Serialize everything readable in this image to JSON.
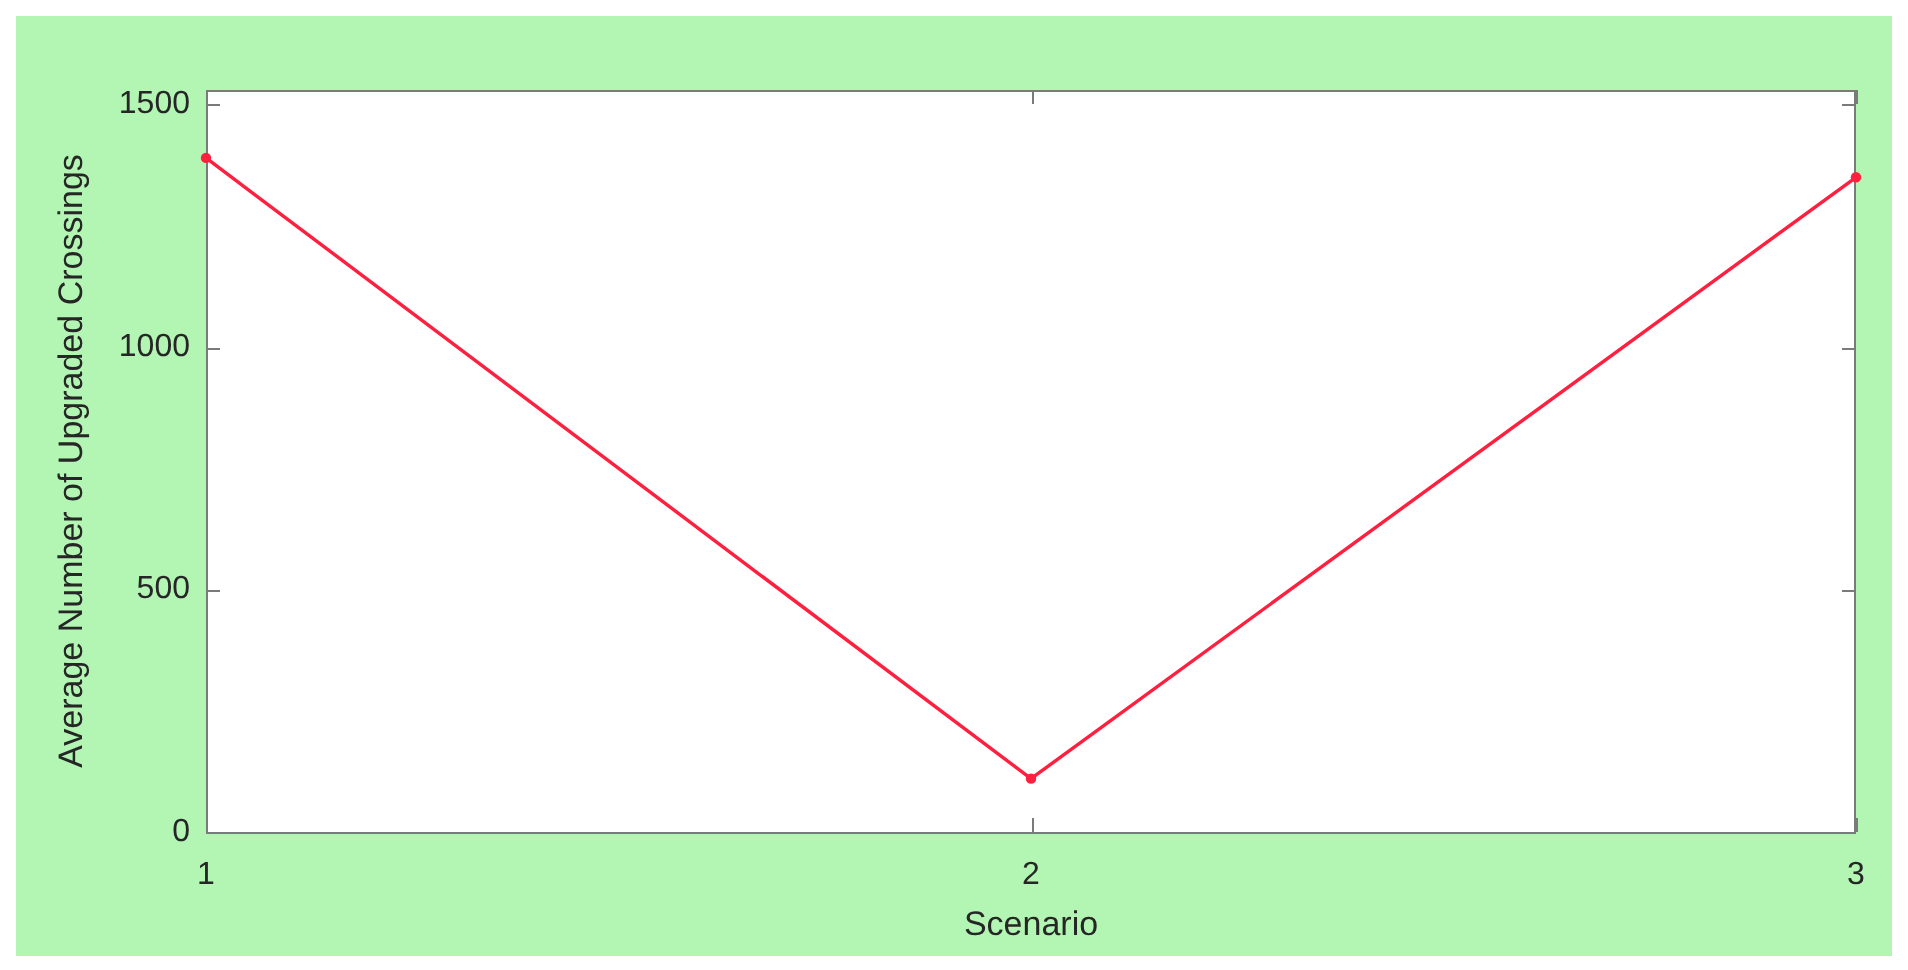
{
  "chart_data": {
    "type": "line",
    "xlabel": "Scenario",
    "ylabel": "Average Number of Upgraded Crossings",
    "x": [
      1,
      2,
      3
    ],
    "series": [
      {
        "color": "#ff1f3f",
        "values": [
          1390,
          110,
          1350
        ]
      }
    ],
    "xlim": [
      1,
      3
    ],
    "xticks": [
      1,
      2,
      3
    ],
    "ylim": [
      0,
      1530
    ],
    "yticks": [
      0,
      500,
      1000,
      1500
    ],
    "marker": "circle",
    "grid": false,
    "legend": false
  }
}
